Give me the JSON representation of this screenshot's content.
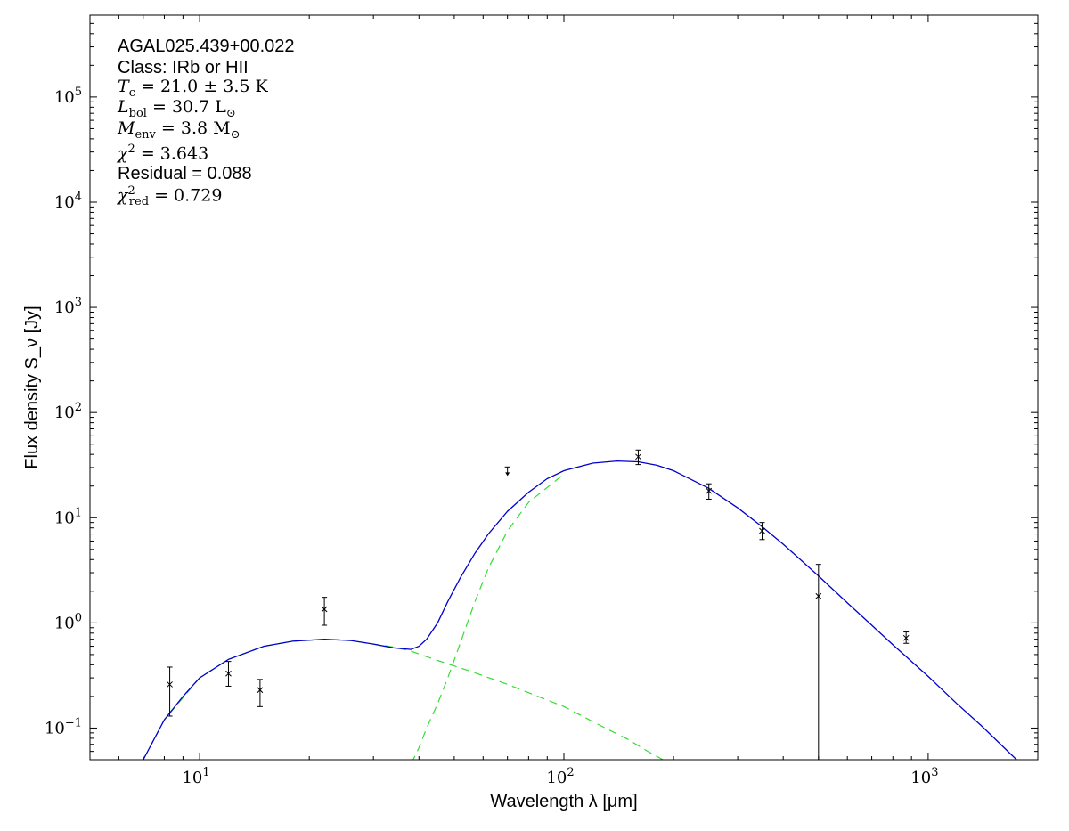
{
  "chart_data": {
    "type": "scatter",
    "xlabel": "Wavelength λ [μm]",
    "ylabel": "Flux density S_ν [Jy]",
    "xscale": "log",
    "yscale": "log",
    "xlim": [
      5,
      2000
    ],
    "ylim": [
      0.05,
      600000
    ],
    "grid": false,
    "x_ticks": [
      {
        "value": 10,
        "base": "10",
        "exp": "1"
      },
      {
        "value": 100,
        "base": "10",
        "exp": "2"
      },
      {
        "value": 1000,
        "base": "10",
        "exp": "3"
      }
    ],
    "y_ticks": [
      {
        "value": 0.1,
        "base": "10",
        "exp": "−1"
      },
      {
        "value": 1,
        "base": "10",
        "exp": "0"
      },
      {
        "value": 10,
        "base": "10",
        "exp": "1"
      },
      {
        "value": 100,
        "base": "10",
        "exp": "2"
      },
      {
        "value": 1000,
        "base": "10",
        "exp": "3"
      },
      {
        "value": 10000,
        "base": "10",
        "exp": "4"
      },
      {
        "value": 100000,
        "base": "10",
        "exp": "5"
      }
    ],
    "annotation": {
      "source": "AGAL025.439+00.022",
      "class_line": "Class: IRb or HII",
      "tc_value": "21.0 ± 3.5 K",
      "lbol_value": "30.7 L",
      "menv_value": "3.8 M",
      "chi2_value": "3.643",
      "residual_line": "Residual = 0.088",
      "chi2red_value": "0.729"
    },
    "observed_points": [
      {
        "x": 8.28,
        "y": 0.26,
        "err_low": 0.13,
        "err_high": 0.38
      },
      {
        "x": 12.0,
        "y": 0.33,
        "err_low": 0.25,
        "err_high": 0.43
      },
      {
        "x": 14.65,
        "y": 0.23,
        "err_low": 0.16,
        "err_high": 0.29
      },
      {
        "x": 22.0,
        "y": 1.35,
        "err_low": 0.95,
        "err_high": 1.75
      },
      {
        "x": 160,
        "y": 38,
        "err_low": 32,
        "err_high": 44
      },
      {
        "x": 250,
        "y": 18,
        "err_low": 15,
        "err_high": 21
      },
      {
        "x": 350,
        "y": 7.5,
        "err_low": 6.2,
        "err_high": 9.0
      },
      {
        "x": 500,
        "y": 1.8,
        "err_low": 0.05,
        "err_high": 3.6
      },
      {
        "x": 870,
        "y": 0.72,
        "err_low": 0.64,
        "err_high": 0.82
      }
    ],
    "upper_limits": [
      {
        "x": 70,
        "y": 27
      }
    ],
    "fit_total": {
      "color": "#0000cc",
      "x": [
        7,
        8,
        9,
        10,
        12,
        15,
        18,
        22,
        26,
        30,
        34,
        38,
        40,
        42,
        45,
        48,
        52,
        57,
        62,
        70,
        80,
        90,
        100,
        120,
        140,
        160,
        180,
        200,
        250,
        300,
        350,
        400,
        500,
        600,
        700,
        800,
        900,
        1000,
        1200,
        1400,
        1700,
        2000
      ],
      "y": [
        0.05,
        0.12,
        0.2,
        0.3,
        0.45,
        0.6,
        0.67,
        0.7,
        0.68,
        0.63,
        0.58,
        0.56,
        0.6,
        0.7,
        1.0,
        1.6,
        2.7,
        4.6,
        7.0,
        11.5,
        17.5,
        23.5,
        28,
        33,
        34.6,
        34,
        31.5,
        28,
        19,
        12.4,
        8.2,
        5.6,
        2.8,
        1.55,
        0.95,
        0.62,
        0.43,
        0.31,
        0.17,
        0.105,
        0.055,
        0.032
      ]
    },
    "fit_warm": {
      "color": "#33dd33",
      "x": [
        7,
        8,
        10,
        12,
        15,
        18,
        22,
        26,
        30,
        34,
        38,
        45,
        55,
        70,
        100,
        130,
        150,
        170,
        200
      ],
      "y": [
        0.05,
        0.12,
        0.3,
        0.45,
        0.6,
        0.67,
        0.7,
        0.68,
        0.63,
        0.59,
        0.54,
        0.44,
        0.35,
        0.26,
        0.16,
        0.1,
        0.078,
        0.06,
        0.044
      ]
    },
    "fit_cold": {
      "color": "#33dd33",
      "x": [
        35,
        38,
        40,
        42,
        45,
        48,
        52,
        57,
        62,
        70,
        80,
        100
      ],
      "y": [
        0.028,
        0.045,
        0.065,
        0.1,
        0.17,
        0.3,
        0.65,
        1.6,
        3.3,
        7.5,
        14,
        26
      ]
    }
  }
}
